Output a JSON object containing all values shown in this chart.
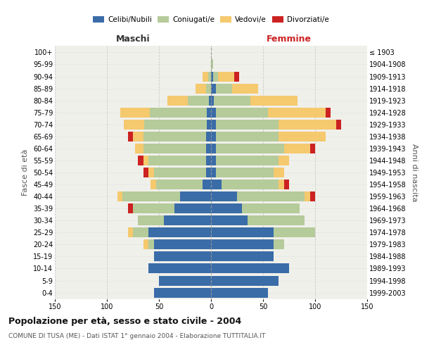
{
  "age_groups": [
    "0-4",
    "5-9",
    "10-14",
    "15-19",
    "20-24",
    "25-29",
    "30-34",
    "35-39",
    "40-44",
    "45-49",
    "50-54",
    "55-59",
    "60-64",
    "65-69",
    "70-74",
    "75-79",
    "80-84",
    "85-89",
    "90-94",
    "95-99",
    "100+"
  ],
  "birth_years": [
    "1999-2003",
    "1994-1998",
    "1989-1993",
    "1984-1988",
    "1979-1983",
    "1974-1978",
    "1969-1973",
    "1964-1968",
    "1959-1963",
    "1954-1958",
    "1949-1953",
    "1944-1948",
    "1939-1943",
    "1934-1938",
    "1929-1933",
    "1924-1928",
    "1919-1923",
    "1914-1918",
    "1909-1913",
    "1904-1908",
    "≤ 1903"
  ],
  "maschi": {
    "celibi": [
      55,
      50,
      60,
      55,
      55,
      60,
      45,
      35,
      30,
      8,
      5,
      5,
      5,
      5,
      4,
      4,
      2,
      0,
      0,
      0,
      0
    ],
    "coniugati": [
      0,
      0,
      0,
      0,
      5,
      15,
      25,
      40,
      55,
      45,
      50,
      55,
      60,
      60,
      60,
      55,
      20,
      5,
      3,
      0,
      0
    ],
    "vedovi": [
      0,
      0,
      0,
      0,
      5,
      5,
      0,
      0,
      5,
      5,
      5,
      5,
      8,
      10,
      20,
      28,
      20,
      10,
      5,
      0,
      0
    ],
    "divorziati": [
      0,
      0,
      0,
      0,
      0,
      0,
      0,
      5,
      0,
      0,
      5,
      5,
      0,
      5,
      0,
      0,
      0,
      0,
      0,
      0,
      0
    ]
  },
  "femmine": {
    "nubili": [
      55,
      65,
      75,
      60,
      60,
      60,
      35,
      30,
      25,
      10,
      5,
      5,
      5,
      5,
      5,
      5,
      3,
      5,
      2,
      0,
      0
    ],
    "coniugate": [
      0,
      0,
      0,
      0,
      10,
      40,
      55,
      55,
      65,
      55,
      55,
      60,
      65,
      60,
      60,
      50,
      35,
      15,
      5,
      2,
      0
    ],
    "vedove": [
      0,
      0,
      0,
      0,
      0,
      0,
      0,
      0,
      5,
      5,
      10,
      10,
      25,
      45,
      55,
      55,
      45,
      25,
      15,
      0,
      0
    ],
    "divorziate": [
      0,
      0,
      0,
      0,
      0,
      0,
      0,
      0,
      5,
      5,
      0,
      0,
      5,
      0,
      5,
      5,
      0,
      0,
      5,
      0,
      0
    ]
  },
  "colors": {
    "celibi": "#3a6ca8",
    "coniugati": "#b5cb9a",
    "vedovi": "#f5c96e",
    "divorziati": "#cc2222"
  },
  "title": "Popolazione per età, sesso e stato civile - 2004",
  "subtitle": "COMUNE DI TUSA (ME) - Dati ISTAT 1° gennaio 2004 - Elaborazione TUTTITALIA.IT",
  "xlabel_left": "Maschi",
  "xlabel_right": "Femmine",
  "ylabel_left": "Fasce di età",
  "ylabel_right": "Anni di nascita",
  "xlim": 150,
  "background_color": "#ffffff",
  "plot_bg_color": "#f0f0eb",
  "grid_color": "#cccccc"
}
